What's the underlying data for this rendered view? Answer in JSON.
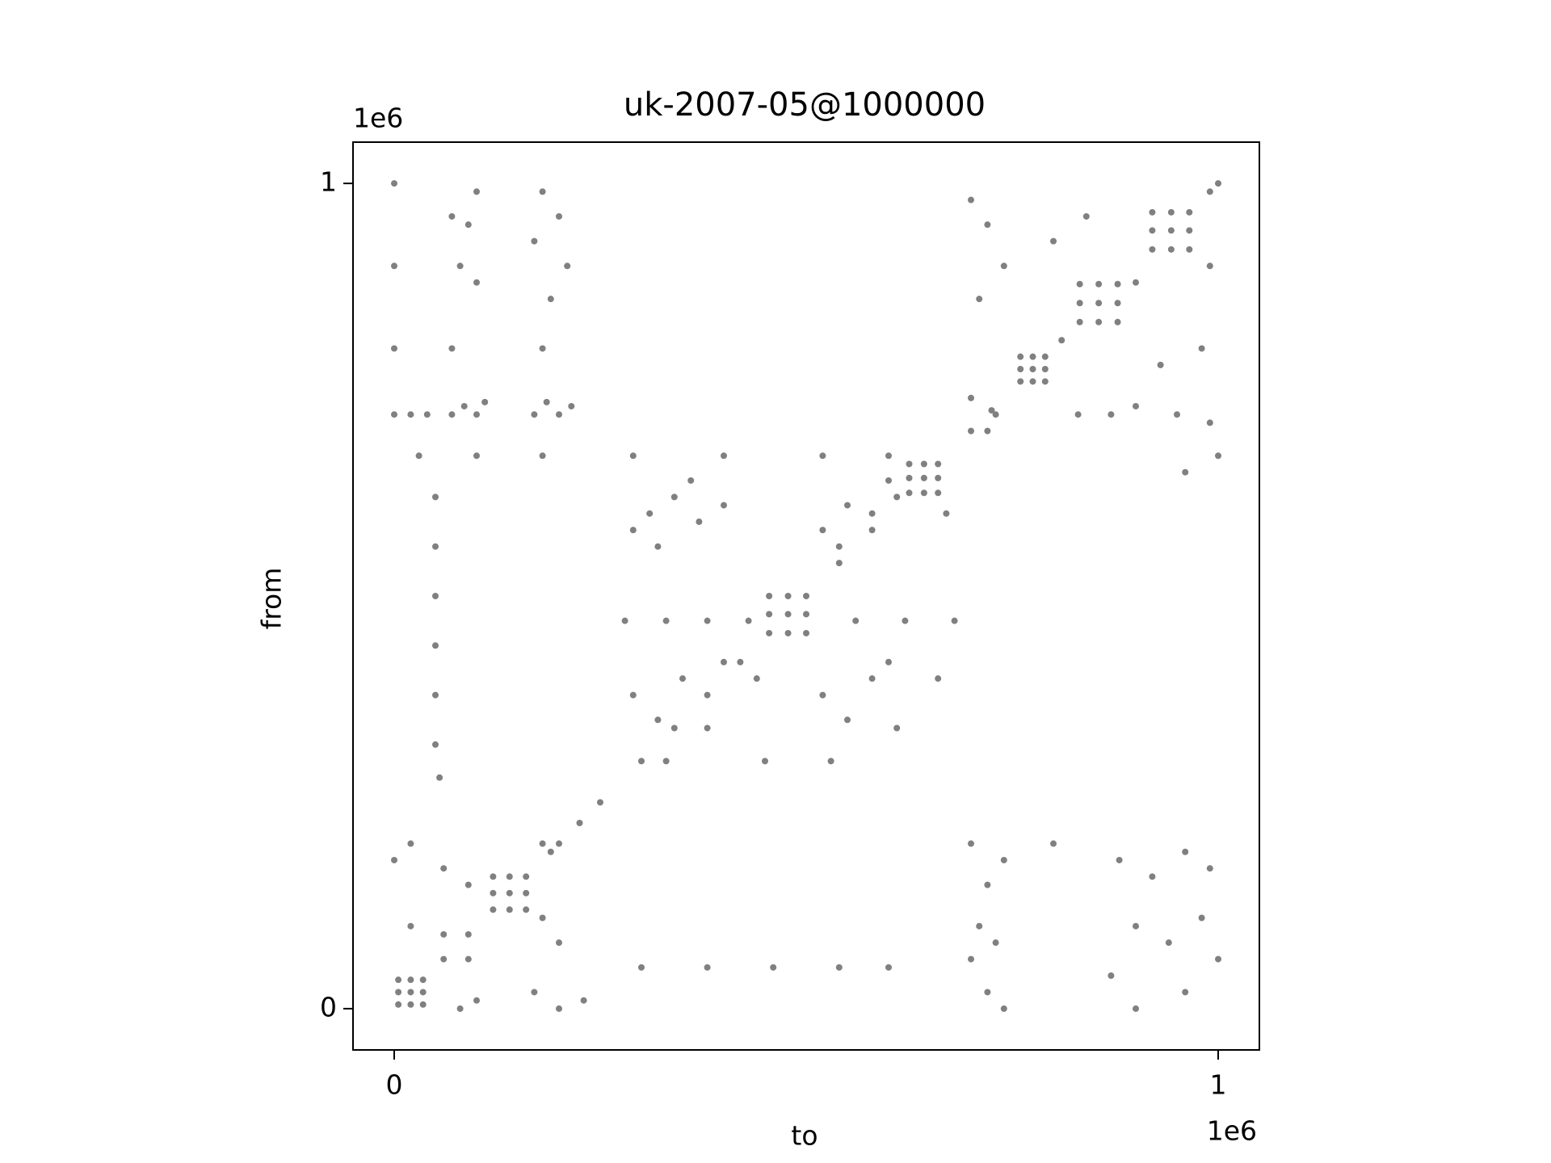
{
  "chart_data": {
    "type": "scatter",
    "title": "uk-2007-05@1000000",
    "xlabel": "to",
    "ylabel": "from",
    "x_offset_label": "1e6",
    "y_offset_label": "1e6",
    "color": "#808080",
    "xlim": [
      -50000,
      1050000
    ],
    "ylim": [
      -50000,
      1050000
    ],
    "xticks": [
      0,
      {
        "value": 1000000,
        "label": "1"
      }
    ],
    "yticks": [
      0,
      {
        "value": 1000000,
        "label": "1"
      }
    ],
    "grid": false,
    "x": [
      5000,
      20000,
      35000,
      5000,
      20000,
      35000,
      5000,
      20000,
      35000,
      120000,
      140000,
      160000,
      120000,
      140000,
      160000,
      120000,
      140000,
      160000,
      455000,
      478000,
      500000,
      455000,
      478000,
      500000,
      455000,
      478000,
      500000,
      625000,
      643000,
      660000,
      625000,
      643000,
      660000,
      625000,
      643000,
      660000,
      760000,
      775000,
      790000,
      760000,
      775000,
      790000,
      760000,
      775000,
      790000,
      832000,
      855000,
      878000,
      832000,
      855000,
      878000,
      832000,
      855000,
      878000,
      920000,
      943000,
      965000,
      920000,
      943000,
      965000,
      920000,
      943000,
      965000,
      60000,
      90000,
      200000,
      225000,
      250000,
      300000,
      340000,
      380000,
      420000,
      540000,
      580000,
      700000,
      725000,
      810000,
      990000,
      1000000,
      0,
      0,
      0,
      0,
      20000,
      40000,
      70000,
      85000,
      100000,
      110000,
      70000,
      90000,
      100000,
      80000,
      100000,
      180000,
      200000,
      170000,
      210000,
      190000,
      170000,
      185000,
      200000,
      215000,
      30000,
      100000,
      180000,
      70000,
      180000,
      290000,
      310000,
      340000,
      370000,
      400000,
      320000,
      360000,
      520000,
      550000,
      580000,
      610000,
      540000,
      600000,
      290000,
      320000,
      350000,
      380000,
      400000,
      330000,
      520000,
      550000,
      580000,
      610000,
      530000,
      600000,
      280000,
      330000,
      380000,
      430000,
      560000,
      620000,
      680000,
      290000,
      400000,
      520000,
      600000,
      300000,
      380000,
      460000,
      540000,
      600000,
      440000,
      450000,
      660000,
      670000,
      50000,
      50000,
      50000,
      50000,
      50000,
      50000,
      55000,
      0,
      20000,
      60000,
      90000,
      20000,
      60000,
      90000,
      190000,
      180000,
      200000,
      170000,
      200000,
      80000,
      100000,
      180000,
      230000,
      700000,
      720000,
      740000,
      710000,
      730000,
      700000,
      720000,
      740000,
      800000,
      880000,
      920000,
      960000,
      990000,
      900000,
      940000,
      980000,
      1000000,
      900000,
      960000,
      870000,
      700000,
      720000,
      740000,
      710000,
      730000,
      700000,
      720000,
      950000,
      900000,
      990000,
      870000,
      960000,
      1000000,
      800000,
      840000,
      900000,
      990000,
      930000,
      980000,
      830000
    ],
    "values": [
      5000,
      5000,
      5000,
      20000,
      20000,
      20000,
      35000,
      35000,
      35000,
      120000,
      120000,
      120000,
      140000,
      140000,
      140000,
      160000,
      160000,
      160000,
      455000,
      455000,
      455000,
      478000,
      478000,
      478000,
      500000,
      500000,
      500000,
      625000,
      625000,
      625000,
      643000,
      643000,
      643000,
      660000,
      660000,
      660000,
      760000,
      760000,
      760000,
      775000,
      775000,
      775000,
      790000,
      790000,
      790000,
      832000,
      832000,
      832000,
      855000,
      855000,
      855000,
      878000,
      878000,
      878000,
      920000,
      920000,
      920000,
      943000,
      943000,
      943000,
      965000,
      965000,
      965000,
      60000,
      90000,
      200000,
      225000,
      250000,
      300000,
      340000,
      380000,
      420000,
      540000,
      580000,
      700000,
      725000,
      810000,
      990000,
      1000000,
      1000000,
      900000,
      800000,
      720000,
      720000,
      720000,
      720000,
      730000,
      720000,
      735000,
      960000,
      950000,
      990000,
      900000,
      880000,
      990000,
      960000,
      930000,
      900000,
      860000,
      720000,
      735000,
      720000,
      730000,
      670000,
      670000,
      670000,
      800000,
      800000,
      580000,
      600000,
      620000,
      590000,
      610000,
      560000,
      640000,
      580000,
      610000,
      600000,
      620000,
      560000,
      640000,
      380000,
      350000,
      400000,
      340000,
      420000,
      300000,
      380000,
      350000,
      400000,
      340000,
      300000,
      420000,
      470000,
      470000,
      470000,
      470000,
      470000,
      470000,
      470000,
      670000,
      670000,
      670000,
      670000,
      50000,
      50000,
      50000,
      50000,
      50000,
      400000,
      300000,
      400000,
      600000,
      620000,
      560000,
      500000,
      440000,
      380000,
      320000,
      280000,
      180000,
      200000,
      170000,
      150000,
      100000,
      90000,
      60000,
      190000,
      110000,
      80000,
      20000,
      0,
      0,
      10000,
      200000,
      10000,
      200000,
      150000,
      180000,
      100000,
      80000,
      60000,
      20000,
      0,
      200000,
      180000,
      160000,
      190000,
      170000,
      100000,
      80000,
      110000,
      60000,
      0,
      20000,
      40000,
      980000,
      950000,
      900000,
      860000,
      720000,
      740000,
      700000,
      720000,
      730000,
      710000,
      720000,
      650000,
      670000,
      930000,
      960000,
      880000,
      900000,
      780000,
      800000,
      720000
    ]
  }
}
